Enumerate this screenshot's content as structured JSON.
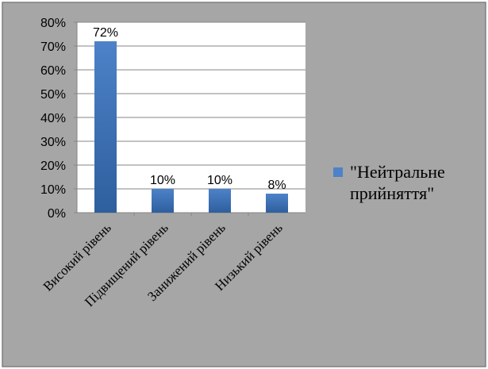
{
  "chart_data": {
    "type": "bar",
    "title": "",
    "xlabel": "",
    "ylabel": "",
    "categories": [
      "Високий рівень",
      "Підвищений рівень",
      "Занижений рівень",
      "Низький рівень"
    ],
    "series": [
      {
        "name": "\"Нейтральне прийняття\"",
        "name_lines": [
          "\"Нейтральне",
          "прийняття\""
        ],
        "values": [
          72,
          10,
          10,
          8
        ],
        "data_labels": [
          "72%",
          "10%",
          "10%",
          "8%"
        ]
      }
    ],
    "y_ticks": [
      "0%",
      "10%",
      "20%",
      "30%",
      "40%",
      "50%",
      "60%",
      "70%",
      "80%"
    ],
    "ylim": [
      0,
      80
    ],
    "y_unit": "%",
    "grid": true,
    "legend_position": "right",
    "colors": {
      "background": "#a6a6a6",
      "plot_area": "#ffffff",
      "bar_top": "#4d82c8",
      "bar_bottom": "#2e5f9e",
      "gridline": "#868686",
      "text": "#000000"
    }
  }
}
